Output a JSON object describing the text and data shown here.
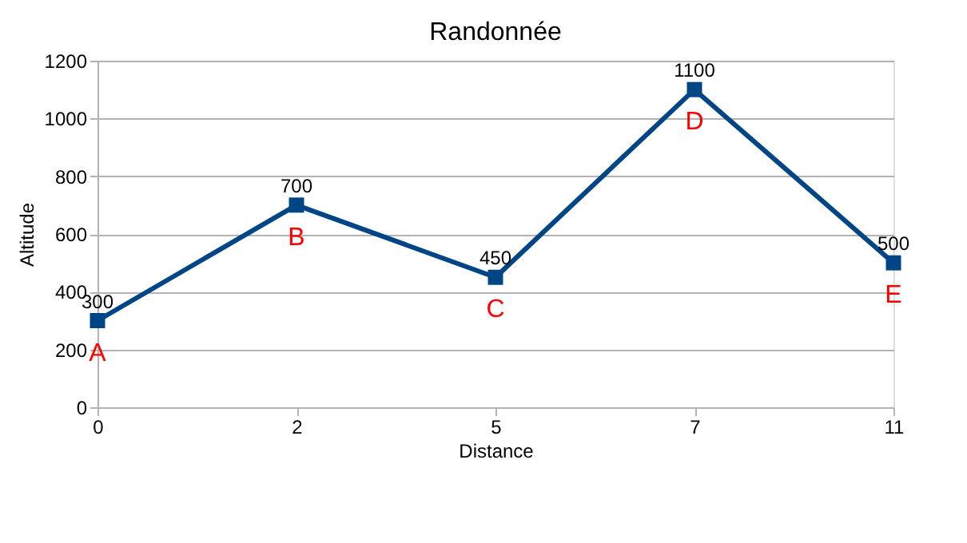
{
  "chart_data": {
    "type": "line",
    "title": "Randonnée",
    "xlabel": "Distance",
    "ylabel": "Altitude",
    "categories": [
      "0",
      "2",
      "5",
      "7",
      "11"
    ],
    "series": [
      {
        "color": "#004586",
        "values": [
          300,
          700,
          450,
          1100,
          500
        ]
      }
    ],
    "ylim": [
      0,
      1200
    ],
    "yticks": [
      0,
      200,
      400,
      600,
      800,
      1000,
      1200
    ],
    "grid": "y",
    "marker": "square",
    "line_style": "solid",
    "data_labels": true,
    "annotations": [
      {
        "text": "A",
        "x": "0",
        "y": 300
      },
      {
        "text": "B",
        "x": "2",
        "y": 700
      },
      {
        "text": "C",
        "x": "5",
        "y": 450
      },
      {
        "text": "D",
        "x": "7",
        "y": 1100
      },
      {
        "text": "E",
        "x": "11",
        "y": 500
      }
    ]
  }
}
